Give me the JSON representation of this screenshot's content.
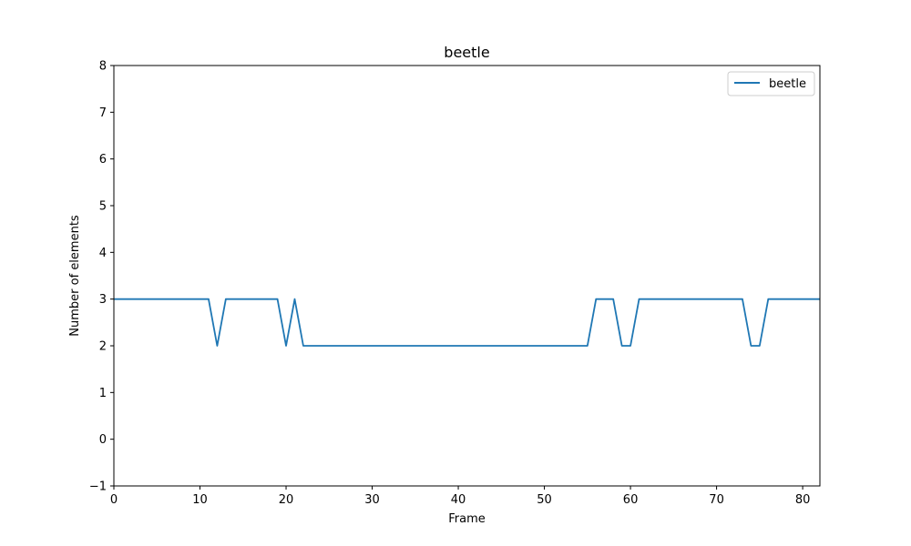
{
  "chart_data": {
    "type": "line",
    "title": "beetle",
    "xlabel": "Frame",
    "ylabel": "Number of elements",
    "xlim": [
      0,
      82
    ],
    "ylim": [
      -1,
      8
    ],
    "xticks": [
      0,
      10,
      20,
      30,
      40,
      50,
      60,
      70,
      80
    ],
    "yticks": [
      -1,
      0,
      1,
      2,
      3,
      4,
      5,
      6,
      7,
      8
    ],
    "ytick_labels": [
      "−1",
      "0",
      "1",
      "2",
      "3",
      "4",
      "5",
      "6",
      "7",
      "8"
    ],
    "grid": false,
    "legend_position": "top-right",
    "series": [
      {
        "name": "beetle",
        "color": "#1f77b4",
        "x": [
          0,
          1,
          2,
          3,
          4,
          5,
          6,
          7,
          8,
          9,
          10,
          11,
          12,
          13,
          14,
          15,
          16,
          17,
          18,
          19,
          20,
          21,
          22,
          23,
          24,
          25,
          26,
          27,
          28,
          29,
          30,
          31,
          32,
          33,
          34,
          35,
          36,
          37,
          38,
          39,
          40,
          41,
          42,
          43,
          44,
          45,
          46,
          47,
          48,
          49,
          50,
          51,
          52,
          53,
          54,
          55,
          56,
          57,
          58,
          59,
          60,
          61,
          62,
          63,
          64,
          65,
          66,
          67,
          68,
          69,
          70,
          71,
          72,
          73,
          74,
          75,
          76,
          77,
          78,
          79,
          80,
          81,
          82
        ],
        "y": [
          3,
          3,
          3,
          3,
          3,
          3,
          3,
          3,
          3,
          3,
          3,
          3,
          2,
          3,
          3,
          3,
          3,
          3,
          3,
          3,
          2,
          3,
          2,
          2,
          2,
          2,
          2,
          2,
          2,
          2,
          2,
          2,
          2,
          2,
          2,
          2,
          2,
          2,
          2,
          2,
          2,
          2,
          2,
          2,
          2,
          2,
          2,
          2,
          2,
          2,
          2,
          2,
          2,
          2,
          2,
          2,
          3,
          3,
          3,
          2,
          2,
          3,
          3,
          3,
          3,
          3,
          3,
          3,
          3,
          3,
          3,
          3,
          3,
          3,
          2,
          2,
          3,
          3,
          3,
          3,
          3,
          3,
          3
        ]
      }
    ]
  }
}
